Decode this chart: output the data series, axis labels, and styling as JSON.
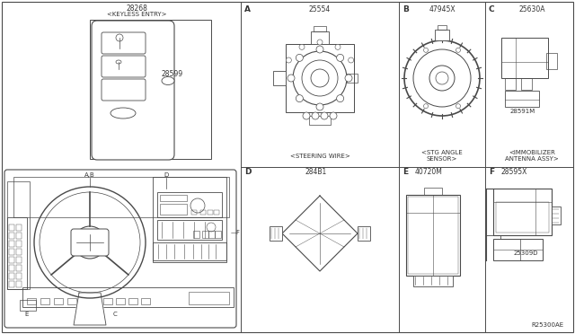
{
  "bg_color": "#ffffff",
  "line_color": "#4a4a4a",
  "text_color": "#333333",
  "part_labels": {
    "steering_wire_num": "25554",
    "steering_wire_desc": "<STEERING WIRE>",
    "stg_angle_num": "47945X",
    "stg_angle_desc": "<STG ANGLE\nSENSOR>",
    "immobilizer_num": "25630A",
    "immobilizer_sub_num": "28591M",
    "immobilizer_desc": "<IMMOBILIZER\nANTENNA ASSY>",
    "keyless_num": "28268",
    "keyless_desc": "<KEYLESS ENTRY>",
    "fob_num": "28599",
    "module_d_num": "284B1",
    "module_e_num": "40720M",
    "module_f_num": "28595X",
    "module_f_sub_num": "25309D"
  },
  "section_labels": [
    "A",
    "B",
    "C",
    "D",
    "E",
    "F"
  ],
  "dash_labels": {
    "ab": "A,B",
    "d": "D",
    "e": "E",
    "c": "C",
    "f": "F"
  },
  "reference": "R25300AE",
  "grid": {
    "vert1": 268,
    "vert2": 444,
    "vert3": 540,
    "horiz": 186
  }
}
